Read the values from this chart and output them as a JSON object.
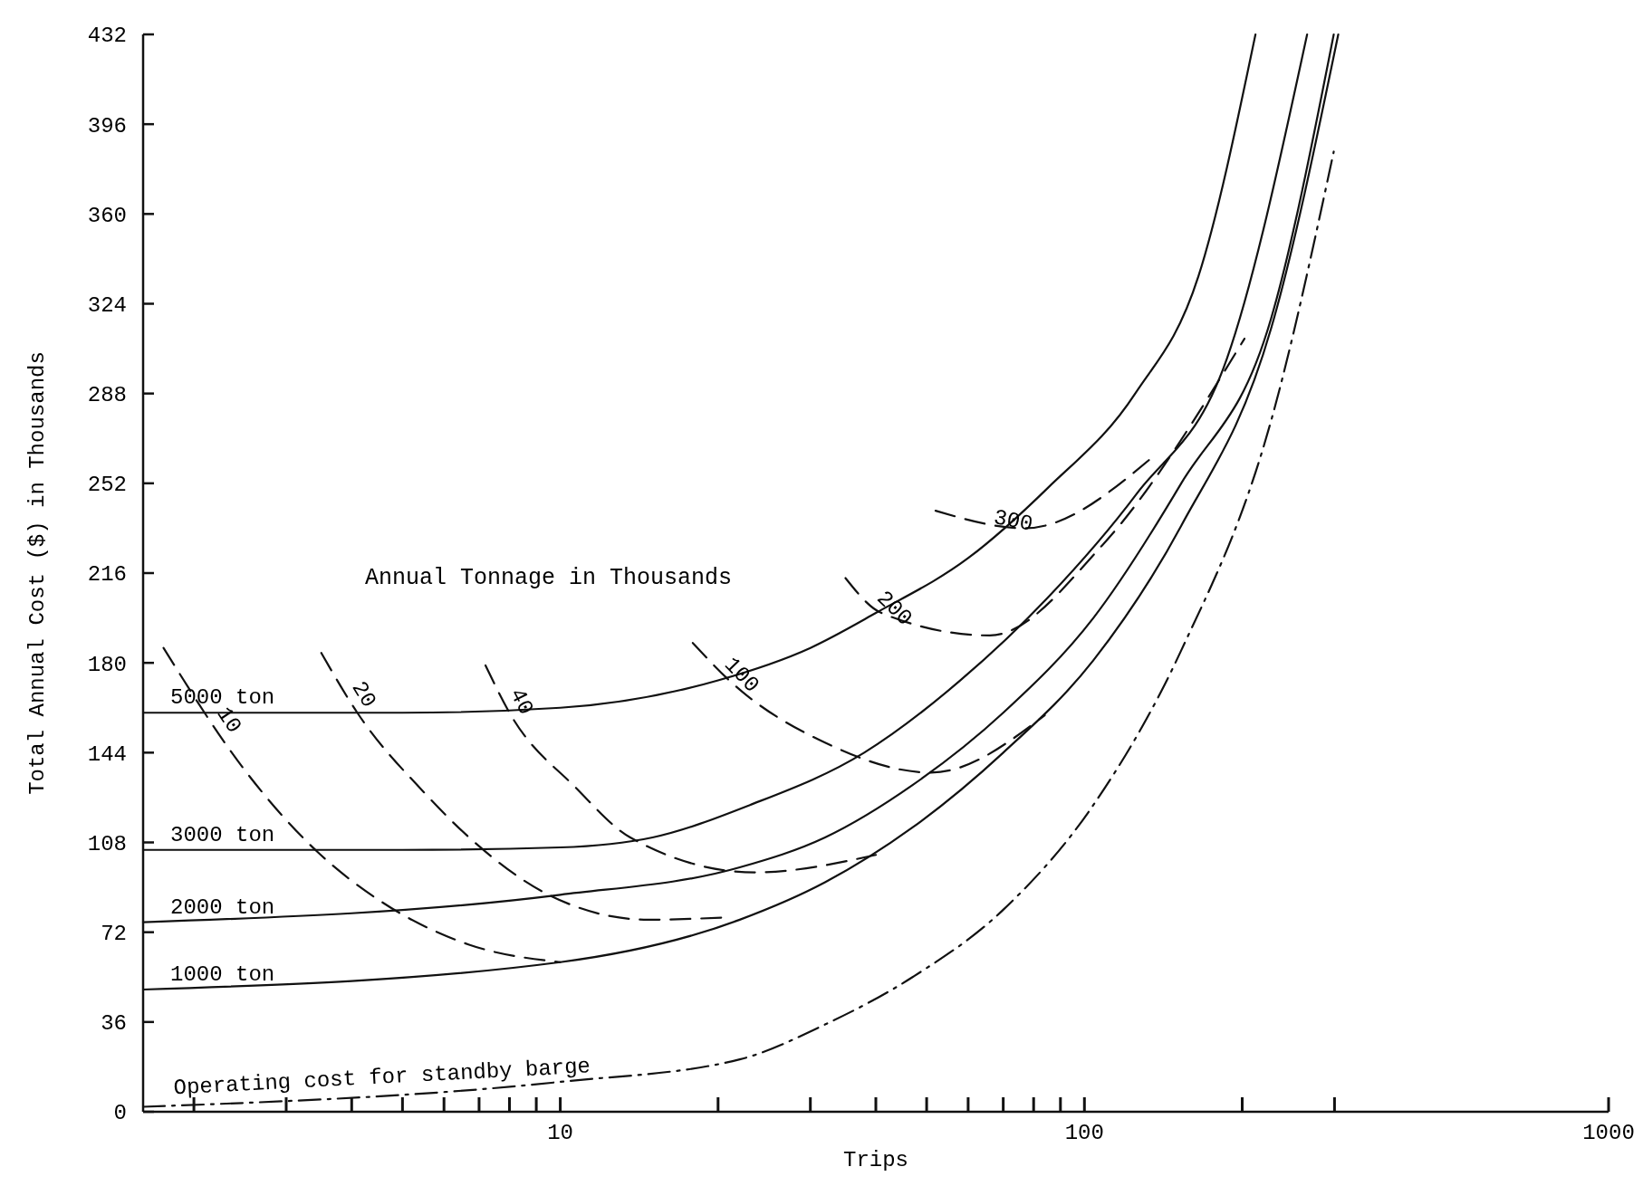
{
  "chart_data": {
    "type": "line",
    "xlabel": "Trips",
    "ylabel": "Total Annual Cost ($) in Thousands",
    "log": "x",
    "xlim": [
      1.6,
      1000
    ],
    "ylim": [
      0,
      432
    ],
    "xticks": [
      {
        "value": 2,
        "label": null
      },
      {
        "value": 3,
        "label": null
      },
      {
        "value": 4,
        "label": null
      },
      {
        "value": 5,
        "label": null
      },
      {
        "value": 6,
        "label": null
      },
      {
        "value": 7,
        "label": null
      },
      {
        "value": 8,
        "label": null
      },
      {
        "value": 9,
        "label": null
      },
      10,
      {
        "value": 20,
        "label": null
      },
      {
        "value": 30,
        "label": null
      },
      {
        "value": 40,
        "label": null
      },
      {
        "value": 50,
        "label": null
      },
      {
        "value": 60,
        "label": null
      },
      {
        "value": 70,
        "label": null
      },
      {
        "value": 80,
        "label": null
      },
      {
        "value": 90,
        "label": null
      },
      100,
      {
        "value": 200,
        "label": null
      },
      {
        "value": 300,
        "label": null
      },
      1000
    ],
    "yticks": [
      0,
      36,
      72,
      108,
      144,
      180,
      216,
      252,
      288,
      324,
      360,
      396,
      432
    ],
    "grid": false,
    "marker": "none",
    "annotations": [
      "Annual Tonnage in Thousands"
    ],
    "series": [
      {
        "name": "5000 ton",
        "color": "#111111",
        "line_style": "solid",
        "x": [
          1.6,
          5,
          10,
          20,
          30,
          40,
          60,
          85,
          125,
          165,
          212
        ],
        "values": [
          160,
          160,
          162,
          173,
          186,
          200,
          222,
          250,
          288,
          335,
          432
        ]
      },
      {
        "name": "3000 ton",
        "color": "#111111",
        "line_style": "solid",
        "x": [
          1.6,
          5,
          10,
          15,
          23,
          38,
          58,
          85,
          126,
          187,
          266
        ],
        "values": [
          105,
          105,
          106,
          110,
          123,
          144,
          173,
          206,
          248,
          302,
          432
        ]
      },
      {
        "name": "2000 ton",
        "color": "#111111",
        "line_style": "solid",
        "x": [
          1.6,
          10,
          22,
          32,
          47,
          70,
          104,
          153,
          227,
          299
        ],
        "values": [
          76,
          87,
          98,
          110,
          131,
          160,
          198,
          252,
          318,
          432
        ]
      },
      {
        "name": "1000 ton",
        "color": "#111111",
        "line_style": "solid",
        "x": [
          1.6,
          10,
          22,
          32,
          47,
          70,
          104,
          153,
          227,
          305
        ],
        "values": [
          49,
          60,
          77,
          92,
          114,
          144,
          181,
          235,
          314,
          432
        ]
      },
      {
        "name": "Operating cost for standby barge",
        "color": "#111111",
        "line_style": "dashdot",
        "x": [
          1.6,
          10,
          22,
          32,
          47,
          70,
          104,
          153,
          227,
          299
        ],
        "values": [
          2,
          12,
          21,
          35,
          54,
          81,
          123,
          185,
          277,
          385
        ]
      },
      {
        "name": "10",
        "color": "#111111",
        "line_style": "dashed",
        "x": [
          1.75,
          2.5,
          3.45,
          4.5,
          6.7,
          10
        ],
        "values": [
          186,
          137,
          104,
          85,
          67,
          60
        ]
      },
      {
        "name": "20",
        "color": "#111111",
        "line_style": "dashed",
        "x": [
          3.5,
          4.1,
          5.5,
          6.7,
          9.5,
          14.7,
          21
        ],
        "values": [
          184,
          160,
          128,
          110,
          87,
          77,
          78
        ]
      },
      {
        "name": "40",
        "color": "#111111",
        "line_style": "dashed",
        "x": [
          7.2,
          8,
          10.7,
          13.6,
          23.5,
          40
        ],
        "values": [
          179,
          160,
          130,
          110,
          96,
          103
        ]
      },
      {
        "name": "100",
        "color": "#111111",
        "line_style": "dashed",
        "x": [
          17.9,
          21,
          32,
          51,
          84
        ],
        "values": [
          188,
          173,
          148,
          136,
          159
        ]
      },
      {
        "name": "200",
        "color": "#111111",
        "line_style": "dashed",
        "x": [
          35,
          41,
          66,
          108,
          202
        ],
        "values": [
          214,
          200,
          191,
          227,
          310
        ]
      },
      {
        "name": "300",
        "color": "#111111",
        "line_style": "dashed",
        "x": [
          52,
          77,
          134
        ],
        "values": [
          241,
          234,
          262
        ]
      }
    ]
  }
}
